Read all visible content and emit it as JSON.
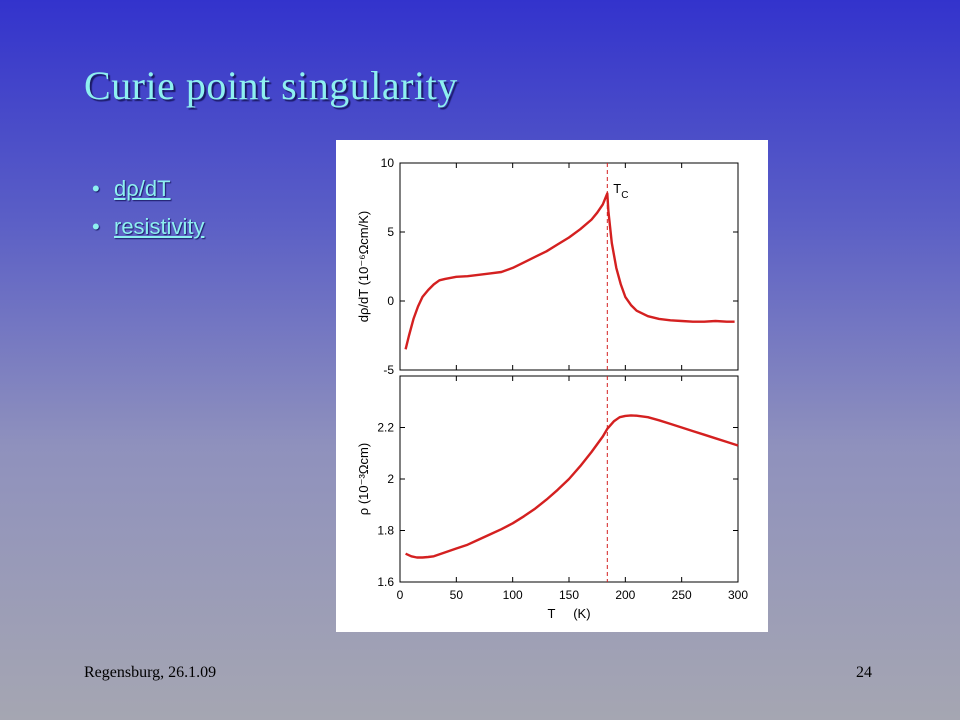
{
  "slide": {
    "title": "Curie point singularity",
    "bullets": [
      {
        "label": "dρ/dT"
      },
      {
        "label": "resistivity"
      }
    ],
    "footer_left": "Regensburg, 26.1.09",
    "page_number": "24"
  },
  "colors": {
    "title": "#8ef0f0",
    "curve": "#d42020",
    "tc_line": "#d42020"
  },
  "chart_data": [
    {
      "type": "line",
      "ylabel": "dρ/dT   (10⁻⁶Ωcm/K)",
      "xlim": [
        0,
        300
      ],
      "ylim": [
        -5,
        10
      ],
      "yticks": [
        -5,
        0,
        5,
        10
      ],
      "annotation": "T",
      "annotation_sub": "C",
      "tc": 184,
      "series": [
        {
          "x": [
            5,
            8,
            12,
            16,
            20,
            25,
            30,
            35,
            40,
            50,
            60,
            70,
            80,
            90,
            100,
            110,
            120,
            130,
            140,
            150,
            160,
            170,
            175,
            180,
            183,
            184,
            185,
            188,
            192,
            196,
            200,
            205,
            210,
            220,
            230,
            240,
            250,
            260,
            270,
            280,
            290,
            297
          ],
          "y": [
            -3.5,
            -2.5,
            -1.3,
            -0.4,
            0.3,
            0.8,
            1.2,
            1.5,
            1.6,
            1.75,
            1.8,
            1.9,
            2.0,
            2.1,
            2.4,
            2.8,
            3.2,
            3.6,
            4.1,
            4.6,
            5.2,
            5.9,
            6.4,
            7.0,
            7.6,
            7.8,
            6.5,
            4.2,
            2.4,
            1.2,
            0.3,
            -0.3,
            -0.7,
            -1.1,
            -1.3,
            -1.4,
            -1.45,
            -1.5,
            -1.5,
            -1.45,
            -1.5,
            -1.5
          ]
        }
      ]
    },
    {
      "type": "line",
      "ylabel": "ρ   (10⁻³Ωcm)",
      "xlabel": "T     (K)",
      "xlim": [
        0,
        300
      ],
      "ylim": [
        1.6,
        2.4
      ],
      "xticks": [
        0,
        50,
        100,
        150,
        200,
        250,
        300
      ],
      "yticks": [
        1.6,
        1.8,
        2,
        2.2
      ],
      "tc": 184,
      "series": [
        {
          "x": [
            5,
            10,
            15,
            20,
            25,
            30,
            40,
            50,
            60,
            70,
            80,
            90,
            100,
            110,
            120,
            130,
            140,
            150,
            160,
            170,
            180,
            184,
            190,
            195,
            200,
            205,
            210,
            220,
            230,
            240,
            250,
            260,
            270,
            280,
            290,
            300
          ],
          "y": [
            1.71,
            1.7,
            1.695,
            1.695,
            1.697,
            1.7,
            1.715,
            1.73,
            1.745,
            1.765,
            1.785,
            1.805,
            1.828,
            1.855,
            1.885,
            1.92,
            1.958,
            2.0,
            2.05,
            2.105,
            2.165,
            2.195,
            2.225,
            2.24,
            2.245,
            2.247,
            2.246,
            2.24,
            2.228,
            2.214,
            2.2,
            2.186,
            2.172,
            2.158,
            2.144,
            2.13
          ]
        }
      ]
    }
  ]
}
